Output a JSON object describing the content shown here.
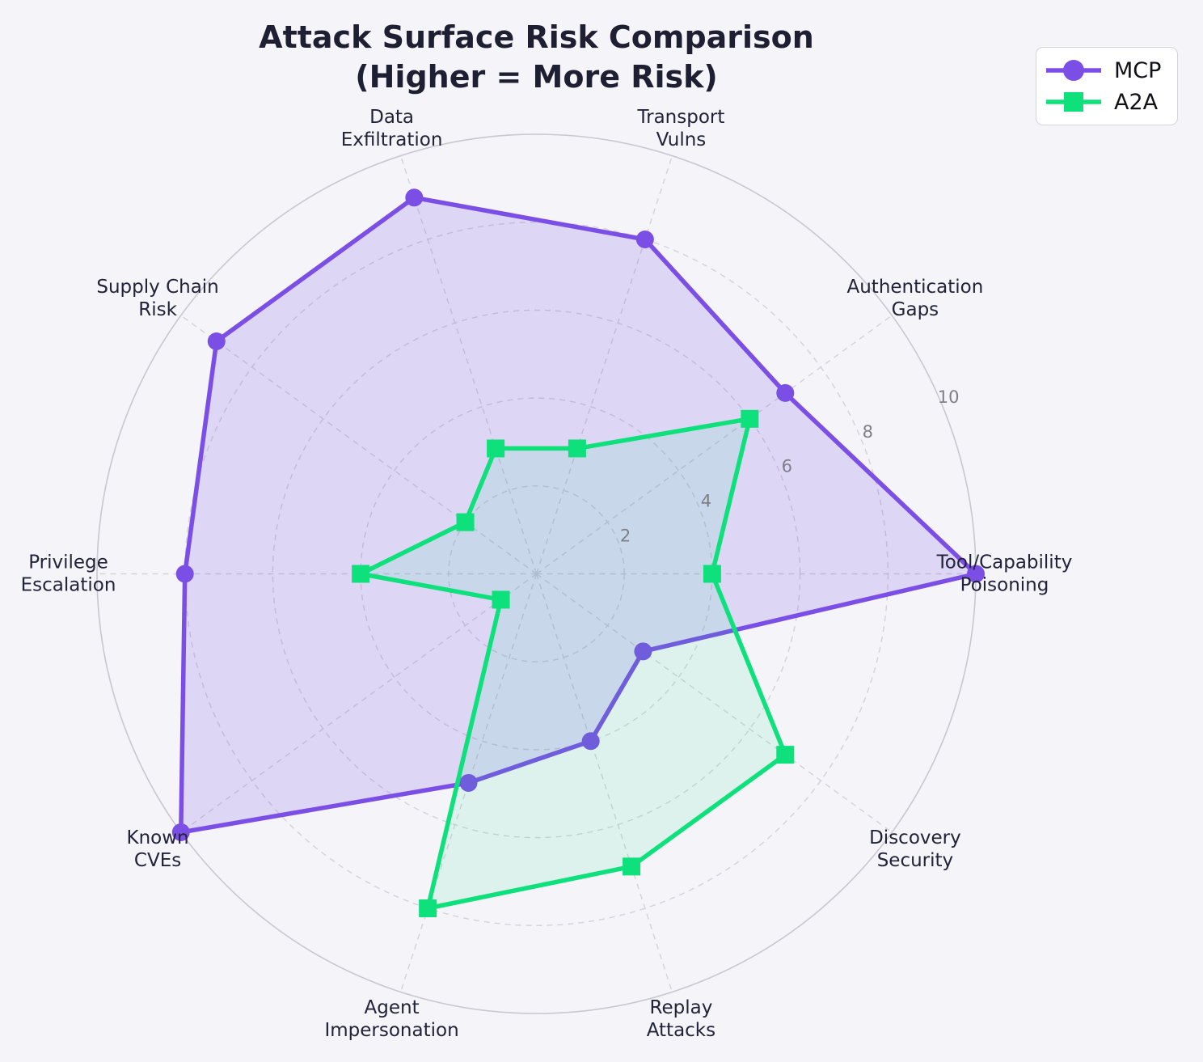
{
  "title": {
    "line1": "Attack Surface Risk Comparison",
    "line2": "(Higher = More Risk)"
  },
  "legend": {
    "items": [
      {
        "label": "MCP",
        "marker": "circle",
        "color": "#7b4fe6"
      },
      {
        "label": "A2A",
        "marker": "square",
        "color": "#0ee07c"
      }
    ]
  },
  "chart_data": {
    "type": "radar",
    "categories": [
      [
        "Tool/Capability",
        "Poisoning"
      ],
      [
        "Authentication",
        "Gaps"
      ],
      [
        "Transport",
        "Vulns"
      ],
      [
        "Data",
        "Exfiltration"
      ],
      [
        "Supply Chain",
        "Risk"
      ],
      [
        "Privilege",
        "Escalation"
      ],
      [
        "Known",
        "CVEs"
      ],
      [
        "Agent",
        "Impersonation"
      ],
      [
        "Replay",
        "Attacks"
      ],
      [
        "Discovery",
        "Security"
      ]
    ],
    "series": [
      {
        "name": "MCP",
        "marker": "circle",
        "color": "#7b4fe6",
        "fill_opacity": 0.18,
        "values": [
          10,
          7,
          8,
          9,
          9,
          8,
          10,
          5,
          4,
          3
        ]
      },
      {
        "name": "A2A",
        "marker": "square",
        "color": "#0ee07c",
        "fill_opacity": 0.1,
        "values": [
          4,
          6,
          3,
          3,
          2,
          4,
          1,
          8,
          7,
          7
        ]
      }
    ],
    "rticks": [
      2,
      4,
      6,
      8,
      10
    ],
    "rmax": 10,
    "start_angle_deg": 0,
    "direction": "counterclockwise",
    "grid": "dashed",
    "legend_position": "upper right"
  }
}
